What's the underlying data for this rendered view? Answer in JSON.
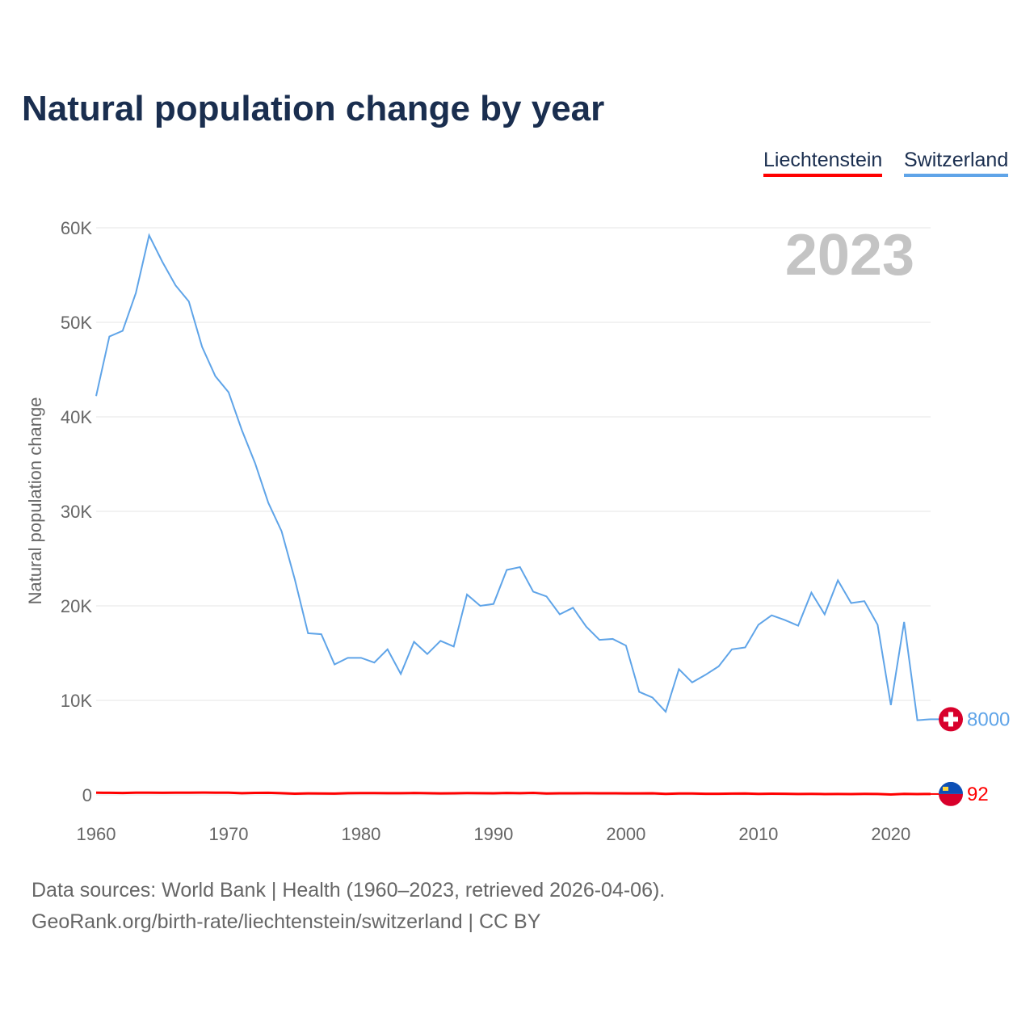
{
  "title": "Natural population change by year",
  "legend": [
    {
      "label": "Liechtenstein",
      "color": "#ff0000"
    },
    {
      "label": "Switzerland",
      "color": "#5fa4e8"
    }
  ],
  "sources": {
    "line1": "Data sources: World Bank | Health (1960–2023, retrieved 2026-04-06).",
    "line2": "GeoRank.org/birth-rate/liechtenstein/switzerland | CC BY"
  },
  "chart_data": {
    "type": "line",
    "title": "Natural population change by year",
    "ylabel": "Natural population change",
    "xlabel": "",
    "year_label": "2023",
    "xlim": [
      1960,
      2023
    ],
    "ylim": [
      0,
      60000
    ],
    "xticks": [
      1960,
      1970,
      1980,
      1990,
      2000,
      2010,
      2020
    ],
    "yticks": [
      {
        "v": 0,
        "label": "0"
      },
      {
        "v": 10000,
        "label": "10K"
      },
      {
        "v": 20000,
        "label": "20K"
      },
      {
        "v": 30000,
        "label": "30K"
      },
      {
        "v": 40000,
        "label": "40K"
      },
      {
        "v": 50000,
        "label": "50K"
      },
      {
        "v": 60000,
        "label": "60K"
      }
    ],
    "grid": true,
    "x": [
      1960,
      1961,
      1962,
      1963,
      1964,
      1965,
      1966,
      1967,
      1968,
      1969,
      1970,
      1971,
      1972,
      1973,
      1974,
      1975,
      1976,
      1977,
      1978,
      1979,
      1980,
      1981,
      1982,
      1983,
      1984,
      1985,
      1986,
      1987,
      1988,
      1989,
      1990,
      1991,
      1992,
      1993,
      1994,
      1995,
      1996,
      1997,
      1998,
      1999,
      2000,
      2001,
      2002,
      2003,
      2004,
      2005,
      2006,
      2007,
      2008,
      2009,
      2010,
      2011,
      2012,
      2013,
      2014,
      2015,
      2016,
      2017,
      2018,
      2019,
      2020,
      2021,
      2022,
      2023
    ],
    "series": [
      {
        "name": "Switzerland",
        "color": "#5fa4e8",
        "end_label": "8000",
        "values": [
          42200,
          48500,
          49100,
          53100,
          59200,
          56400,
          53900,
          52200,
          47400,
          44300,
          42600,
          38600,
          35100,
          30900,
          27900,
          22800,
          17100,
          17000,
          13800,
          14500,
          14500,
          14000,
          15400,
          12800,
          16200,
          14900,
          16300,
          15700,
          21200,
          20000,
          20200,
          23800,
          24100,
          21500,
          21000,
          19100,
          19800,
          17800,
          16400,
          16500,
          15800,
          10900,
          10300,
          8800,
          13300,
          11900,
          12700,
          13600,
          15400,
          15600,
          18000,
          19000,
          18500,
          17900,
          21400,
          19100,
          22700,
          20300,
          20500,
          18000,
          9500,
          18300,
          7900,
          8000
        ]
      },
      {
        "name": "Liechtenstein",
        "color": "#ff0000",
        "end_label": "92",
        "values": [
          230,
          220,
          200,
          240,
          230,
          220,
          230,
          240,
          250,
          230,
          230,
          180,
          210,
          220,
          180,
          130,
          160,
          150,
          140,
          180,
          190,
          190,
          180,
          180,
          200,
          180,
          160,
          170,
          190,
          180,
          170,
          200,
          180,
          210,
          150,
          170,
          170,
          180,
          170,
          170,
          160,
          160,
          170,
          110,
          150,
          150,
          120,
          120,
          140,
          150,
          110,
          130,
          120,
          100,
          110,
          90,
          100,
          90,
          110,
          100,
          40,
          110,
          90,
          92
        ]
      }
    ]
  }
}
